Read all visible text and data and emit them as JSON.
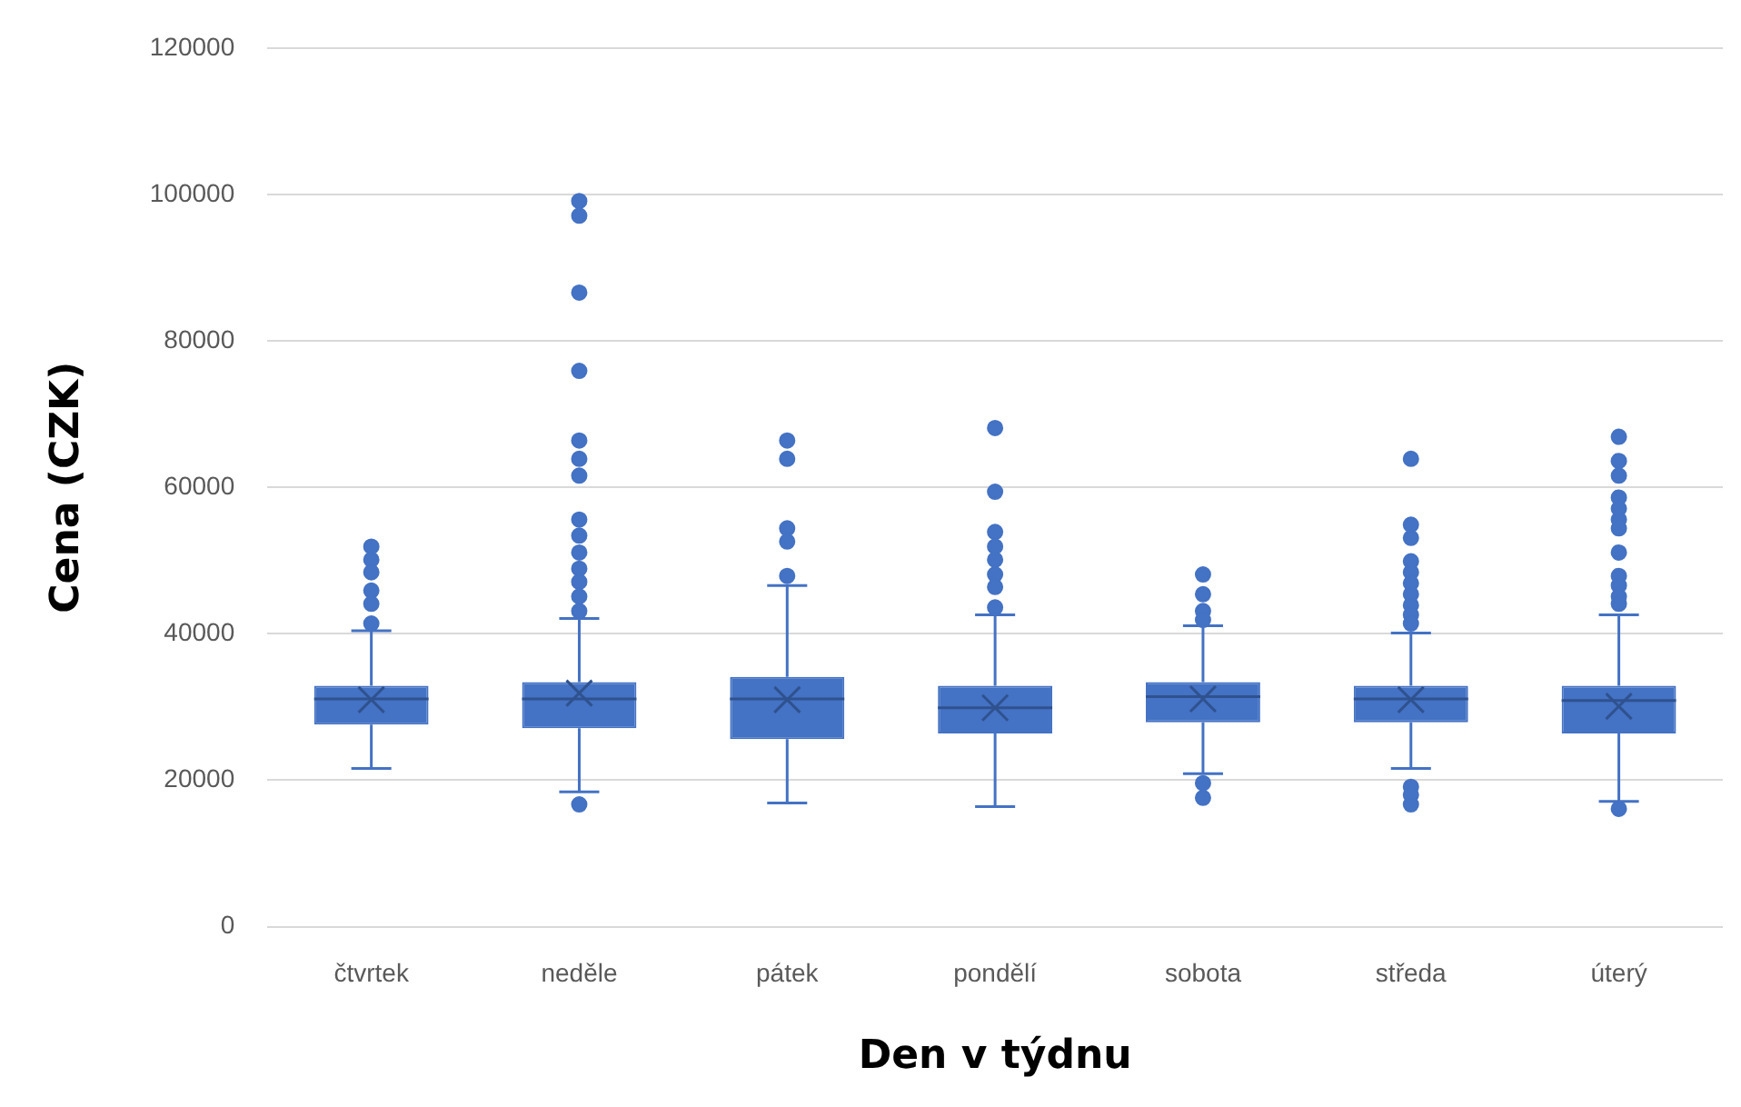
{
  "chart_data": {
    "type": "box",
    "xlabel": "Den v týdnu",
    "ylabel": "Cena (CZK)",
    "categories": [
      "čtvrtek",
      "neděle",
      "pátek",
      "pondělí",
      "sobota",
      "středa",
      "úterý"
    ],
    "color": "#4472c4",
    "ylim": [
      0,
      120000
    ],
    "yticks": [
      0,
      20000,
      40000,
      60000,
      80000,
      100000,
      120000
    ],
    "grid": "y",
    "marker": "circle",
    "boxes": [
      {
        "low": 21600,
        "q1": 27600,
        "median": 31100,
        "q3": 32900,
        "high": 40400,
        "mean": 31000,
        "outliers": [
          51900,
          50100,
          48400,
          45900,
          44100,
          41400
        ]
      },
      {
        "low": 18400,
        "q1": 27100,
        "median": 31100,
        "q3": 33400,
        "high": 42100,
        "mean": 31900,
        "outliers": [
          16700,
          99100,
          97100,
          86600,
          75900,
          66400,
          63900,
          61600,
          55600,
          53400,
          51100,
          48900,
          47100,
          45100,
          43100
        ]
      },
      {
        "low": 16900,
        "q1": 25600,
        "median": 31100,
        "q3": 34100,
        "high": 46600,
        "mean": 31000,
        "outliers": [
          66400,
          63900,
          54400,
          52600,
          47900
        ]
      },
      {
        "low": 16400,
        "q1": 26400,
        "median": 29900,
        "q3": 32900,
        "high": 42600,
        "mean": 29900,
        "outliers": [
          68100,
          59400,
          53900,
          51900,
          50100,
          48100,
          46400,
          43600
        ]
      },
      {
        "low": 20900,
        "q1": 27900,
        "median": 31400,
        "q3": 33400,
        "high": 41100,
        "mean": 31100,
        "outliers": [
          48100,
          45400,
          43100,
          41900,
          19600,
          17600
        ]
      },
      {
        "low": 21600,
        "q1": 27900,
        "median": 31100,
        "q3": 32900,
        "high": 40100,
        "mean": 31000,
        "outliers": [
          63900,
          54900,
          53100,
          49900,
          48400,
          46900,
          45400,
          43900,
          42600,
          41400,
          19100,
          18000,
          16700
        ]
      },
      {
        "low": 17100,
        "q1": 26400,
        "median": 30900,
        "q3": 32900,
        "high": 42600,
        "mean": 30100,
        "outliers": [
          66900,
          63600,
          61600,
          58600,
          57100,
          55600,
          54400,
          51100,
          47900,
          46600,
          45100,
          44100,
          16100
        ]
      }
    ]
  }
}
